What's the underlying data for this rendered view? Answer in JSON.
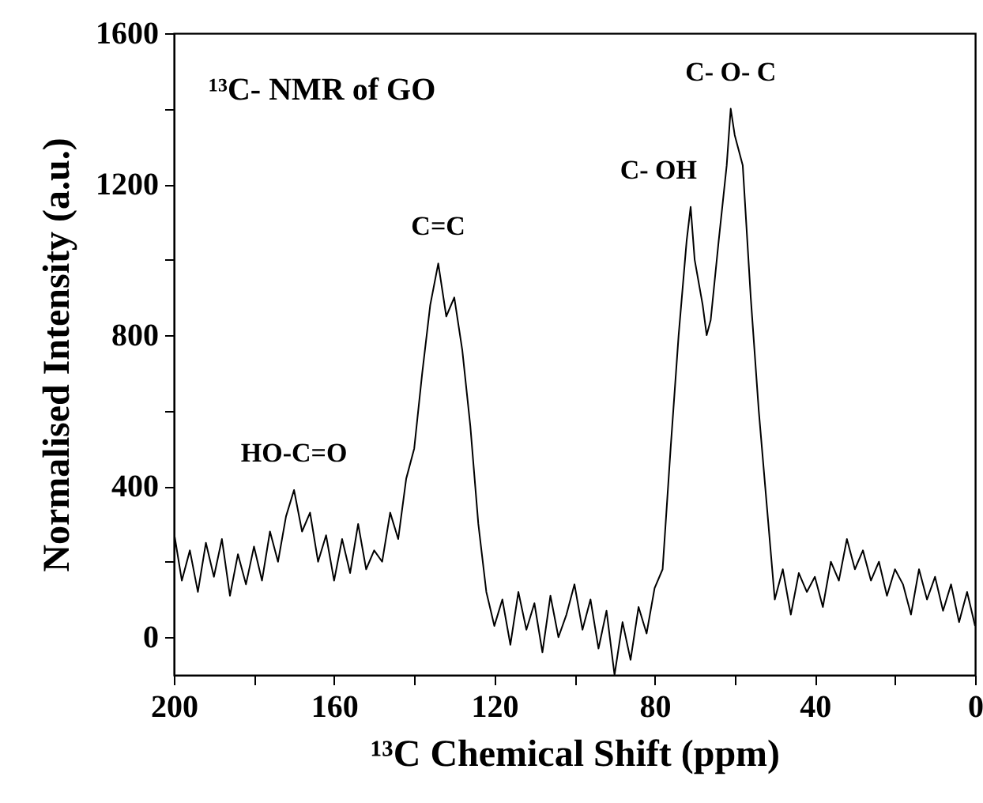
{
  "chart_data": {
    "type": "line",
    "title": "¹³C- NMR of GO",
    "xlabel": "¹³C Chemical Shift (ppm)",
    "ylabel": "Normalised Intensity (a.u.)",
    "x": [
      200,
      198,
      196,
      194,
      192,
      190,
      188,
      186,
      184,
      182,
      180,
      178,
      176,
      174,
      172,
      170,
      168,
      166,
      164,
      162,
      160,
      158,
      156,
      154,
      152,
      150,
      148,
      146,
      144,
      142,
      140,
      138,
      136,
      134,
      132,
      130,
      128,
      126,
      124,
      122,
      120,
      118,
      116,
      114,
      112,
      110,
      108,
      106,
      104,
      102,
      100,
      98,
      96,
      94,
      92,
      90,
      88,
      86,
      84,
      82,
      80,
      78,
      76,
      74,
      72,
      71,
      70,
      68,
      67,
      66,
      64,
      62,
      61,
      60,
      58,
      56,
      54,
      52,
      50,
      48,
      46,
      44,
      42,
      40,
      38,
      36,
      34,
      32,
      30,
      28,
      26,
      24,
      22,
      20,
      18,
      16,
      14,
      12,
      10,
      8,
      6,
      4,
      2,
      0
    ],
    "series": [
      {
        "color": "#000000",
        "values": [
          280,
          150,
          230,
          120,
          250,
          160,
          260,
          110,
          220,
          140,
          240,
          150,
          280,
          200,
          320,
          390,
          280,
          330,
          200,
          270,
          150,
          260,
          170,
          300,
          180,
          230,
          200,
          330,
          260,
          420,
          500,
          700,
          880,
          990,
          850,
          900,
          760,
          560,
          300,
          120,
          30,
          100,
          -20,
          120,
          20,
          90,
          -40,
          110,
          0,
          60,
          140,
          20,
          100,
          -30,
          70,
          -100,
          40,
          -60,
          80,
          10,
          130,
          180,
          500,
          800,
          1050,
          1140,
          1000,
          880,
          800,
          840,
          1050,
          1250,
          1400,
          1330,
          1250,
          900,
          600,
          350,
          100,
          180,
          60,
          170,
          120,
          160,
          80,
          200,
          150,
          260,
          180,
          230,
          150,
          200,
          110,
          180,
          140,
          60,
          180,
          100,
          160,
          70,
          140,
          40,
          120,
          30
        ]
      }
    ],
    "xlim": [
      200,
      0
    ],
    "ylim": [
      -100,
      1600
    ],
    "xticks": [
      200,
      {
        "value": 180,
        "label": null
      },
      160,
      {
        "value": 140,
        "label": null
      },
      120,
      {
        "value": 100,
        "label": null
      },
      80,
      {
        "value": 60,
        "label": null
      },
      40,
      {
        "value": 20,
        "label": null
      },
      0
    ],
    "yticks": [
      0,
      {
        "value": 200,
        "label": null
      },
      400,
      {
        "value": 600,
        "label": null
      },
      800,
      {
        "value": 1000,
        "label": null
      },
      1200,
      {
        "value": 1400,
        "label": null
      },
      1600
    ],
    "annotations": [
      {
        "text": "HO-C=O",
        "x": 170,
        "y": 390
      },
      {
        "text": "C=C",
        "x": 134,
        "y": 990
      },
      {
        "text": "C- OH",
        "x": 71,
        "y": 1140
      },
      {
        "text": "C- O- C",
        "x": 61,
        "y": 1400
      }
    ]
  }
}
